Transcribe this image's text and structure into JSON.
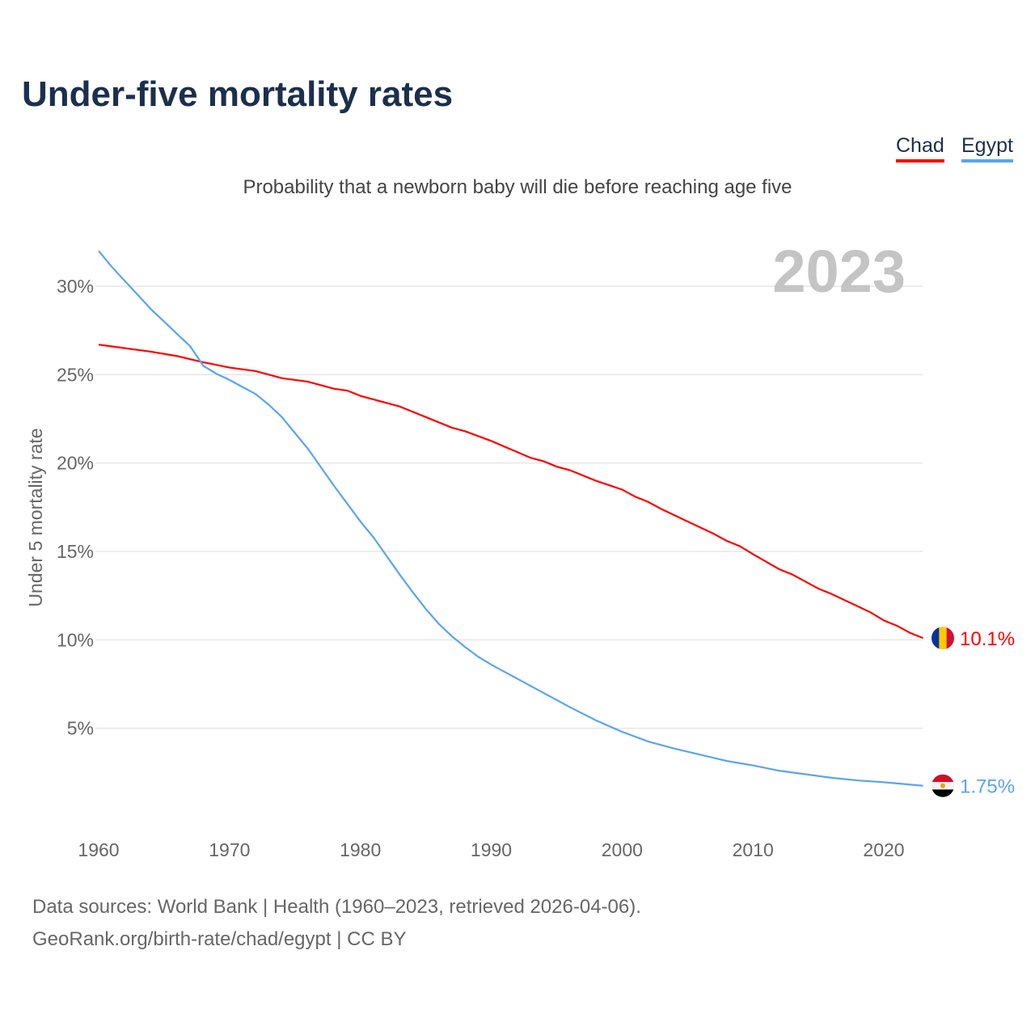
{
  "title": "Under-five mortality rates",
  "subtitle": "Probability that a newborn baby will die before reaching age five",
  "legend": [
    {
      "label": "Chad",
      "color": "#ff0000"
    },
    {
      "label": "Egypt",
      "color": "#5ba4ee"
    }
  ],
  "source_line1": "Data sources: World Bank | Health (1960–2023, retrieved 2026-04-06).",
  "source_line2": "GeoRank.org/birth-rate/chad/egypt | CC BY",
  "chart_data": {
    "type": "line",
    "title": "Under-five mortality rates",
    "ylabel": "Under 5 mortality rate",
    "year_label": "2023",
    "xlim": [
      1960,
      2023
    ],
    "ylim": [
      0,
      32
    ],
    "x_ticks": [
      1960,
      1970,
      1980,
      1990,
      2000,
      2010,
      2020
    ],
    "y_ticks": [
      {
        "v": 5,
        "label": "5%"
      },
      {
        "v": 10,
        "label": "10%"
      },
      {
        "v": 15,
        "label": "15%"
      },
      {
        "v": 20,
        "label": "20%"
      },
      {
        "v": 25,
        "label": "25%"
      },
      {
        "v": 30,
        "label": "30%"
      }
    ],
    "series": [
      {
        "name": "Chad",
        "color": "#ff0000",
        "end_label": "10.1%",
        "points": [
          [
            1960,
            26.7
          ],
          [
            1964,
            26.3
          ],
          [
            1966,
            26.05
          ],
          [
            1968,
            25.7
          ],
          [
            1970,
            25.4
          ],
          [
            1972,
            25.2
          ],
          [
            1974,
            24.8
          ],
          [
            1976,
            24.6
          ],
          [
            1978,
            24.2
          ],
          [
            1979,
            24.1
          ],
          [
            1980,
            23.8
          ],
          [
            1983,
            23.2
          ],
          [
            1985,
            22.6
          ],
          [
            1987,
            22.0
          ],
          [
            1988,
            21.8
          ],
          [
            1990,
            21.25
          ],
          [
            1993,
            20.3
          ],
          [
            1994,
            20.1
          ],
          [
            1995,
            19.8
          ],
          [
            1996,
            19.6
          ],
          [
            1998,
            19.0
          ],
          [
            2000,
            18.5
          ],
          [
            2001,
            18.1
          ],
          [
            2002,
            17.8
          ],
          [
            2003,
            17.4
          ],
          [
            2005,
            16.7
          ],
          [
            2007,
            16.0
          ],
          [
            2008,
            15.6
          ],
          [
            2009,
            15.3
          ],
          [
            2010,
            14.85
          ],
          [
            2012,
            14.0
          ],
          [
            2013,
            13.7
          ],
          [
            2015,
            12.9
          ],
          [
            2016,
            12.6
          ],
          [
            2018,
            11.9
          ],
          [
            2019,
            11.55
          ],
          [
            2020,
            11.1
          ],
          [
            2021,
            10.8
          ],
          [
            2022,
            10.4
          ],
          [
            2023,
            10.1
          ]
        ]
      },
      {
        "name": "Egypt",
        "color": "#5ba4ee",
        "end_label": "1.75%",
        "points": [
          [
            1960,
            32.0
          ],
          [
            1961,
            31.1
          ],
          [
            1962,
            30.3
          ],
          [
            1963,
            29.5
          ],
          [
            1964,
            28.7
          ],
          [
            1965,
            28.0
          ],
          [
            1966,
            27.3
          ],
          [
            1967,
            26.6
          ],
          [
            1968,
            25.5
          ],
          [
            1969,
            25.05
          ],
          [
            1970,
            24.7
          ],
          [
            1971,
            24.3
          ],
          [
            1972,
            23.9
          ],
          [
            1973,
            23.3
          ],
          [
            1974,
            22.6
          ],
          [
            1975,
            21.7
          ],
          [
            1976,
            20.8
          ],
          [
            1977,
            19.75
          ],
          [
            1978,
            18.7
          ],
          [
            1979,
            17.7
          ],
          [
            1980,
            16.7
          ],
          [
            1981,
            15.8
          ],
          [
            1982,
            14.75
          ],
          [
            1983,
            13.7
          ],
          [
            1984,
            12.7
          ],
          [
            1985,
            11.75
          ],
          [
            1986,
            10.9
          ],
          [
            1987,
            10.2
          ],
          [
            1988,
            9.6
          ],
          [
            1989,
            9.05
          ],
          [
            1990,
            8.6
          ],
          [
            1992,
            7.8
          ],
          [
            1994,
            7.0
          ],
          [
            1996,
            6.2
          ],
          [
            1998,
            5.45
          ],
          [
            2000,
            4.8
          ],
          [
            2002,
            4.25
          ],
          [
            2004,
            3.85
          ],
          [
            2006,
            3.5
          ],
          [
            2008,
            3.15
          ],
          [
            2010,
            2.9
          ],
          [
            2012,
            2.6
          ],
          [
            2014,
            2.4
          ],
          [
            2016,
            2.2
          ],
          [
            2018,
            2.05
          ],
          [
            2020,
            1.95
          ],
          [
            2023,
            1.75
          ]
        ]
      }
    ]
  }
}
